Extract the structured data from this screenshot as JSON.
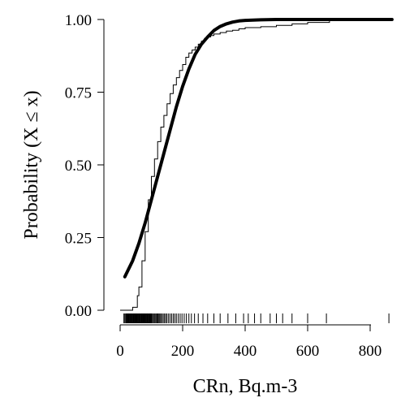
{
  "chart_data": {
    "type": "line",
    "xlabel": "CRn, Bq.m-3",
    "ylabel": "Probability (X ≤ x)",
    "xlim": [
      0,
      870
    ],
    "ylim": [
      0,
      1
    ],
    "x_ticks": [
      "0",
      "200",
      "400",
      "600",
      "800"
    ],
    "y_ticks": [
      "0.00",
      "0.25",
      "0.50",
      "0.75",
      "1.00"
    ],
    "grid": false,
    "series": [
      {
        "kind": "fitted-cdf",
        "x": [
          15,
          40,
          60,
          80,
          100,
          120,
          140,
          160,
          180,
          200,
          220,
          240,
          260,
          280,
          300,
          320,
          340,
          360,
          380,
          400,
          450,
          500,
          600,
          700,
          800,
          870
        ],
        "y": [
          0.115,
          0.17,
          0.23,
          0.3,
          0.38,
          0.46,
          0.54,
          0.62,
          0.7,
          0.77,
          0.83,
          0.88,
          0.915,
          0.94,
          0.962,
          0.976,
          0.985,
          0.991,
          0.995,
          0.997,
          0.999,
          1.0,
          1.0,
          1.0,
          1.0,
          1.0
        ]
      },
      {
        "kind": "empirical-cdf",
        "x": [
          0,
          25,
          40,
          55,
          60,
          70,
          80,
          90,
          100,
          110,
          120,
          130,
          140,
          150,
          160,
          170,
          180,
          190,
          200,
          210,
          220,
          230,
          240,
          250,
          260,
          270,
          280,
          290,
          300,
          320,
          340,
          360,
          380,
          400,
          450,
          500,
          550,
          600,
          670,
          870
        ],
        "y": [
          0,
          0,
          0.01,
          0.05,
          0.08,
          0.17,
          0.27,
          0.38,
          0.46,
          0.52,
          0.58,
          0.63,
          0.67,
          0.71,
          0.745,
          0.775,
          0.8,
          0.825,
          0.845,
          0.87,
          0.885,
          0.895,
          0.905,
          0.915,
          0.925,
          0.935,
          0.94,
          0.945,
          0.95,
          0.955,
          0.96,
          0.963,
          0.968,
          0.972,
          0.975,
          0.98,
          0.985,
          0.99,
          0.998,
          1.0
        ]
      }
    ],
    "rug": [
      12,
      15,
      18,
      20,
      22,
      24,
      26,
      28,
      30,
      32,
      34,
      36,
      38,
      40,
      42,
      44,
      46,
      48,
      50,
      52,
      54,
      56,
      58,
      60,
      62,
      64,
      66,
      68,
      70,
      72,
      74,
      76,
      78,
      80,
      82,
      84,
      86,
      88,
      90,
      92,
      94,
      96,
      98,
      100,
      103,
      106,
      109,
      112,
      115,
      118,
      121,
      124,
      127,
      130,
      134,
      138,
      142,
      146,
      150,
      155,
      160,
      165,
      170,
      175,
      180,
      186,
      192,
      198,
      205,
      212,
      220,
      228,
      238,
      250,
      265,
      280,
      300,
      320,
      345,
      370,
      395,
      410,
      430,
      450,
      480,
      500,
      520,
      550,
      600,
      660,
      860
    ]
  }
}
